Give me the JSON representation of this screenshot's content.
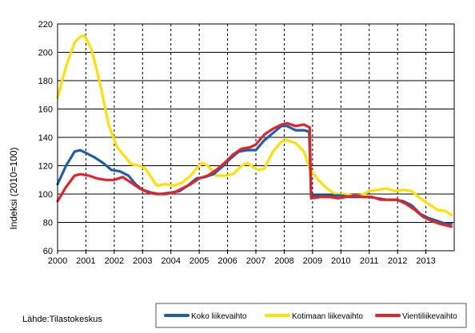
{
  "chart_data": {
    "type": "line",
    "ylabel": "Indeksi (2010=100)",
    "source": "Lähde:Tilastokeskus",
    "ylim": [
      60,
      220
    ],
    "y_ticks": [
      "60",
      "80",
      "100",
      "120",
      "140",
      "160",
      "180",
      "200",
      "220"
    ],
    "x_range": [
      2000,
      2014
    ],
    "x_ticks": [
      "2000",
      "2001",
      "2002",
      "2003",
      "2004",
      "2005",
      "2006",
      "2007",
      "2008",
      "2009",
      "2010",
      "2011",
      "2012",
      "2013"
    ],
    "grid": "vertical dashed at year starts, horizontal solid at y ticks",
    "legend_position": "bottom-right",
    "series": [
      {
        "name": "Koko liikevaihto",
        "color": "#1f5fa8",
        "points": [
          [
            2000.0,
            107
          ],
          [
            2000.3,
            120
          ],
          [
            2000.6,
            130
          ],
          [
            2000.8,
            131
          ],
          [
            2001.0,
            129
          ],
          [
            2001.3,
            126
          ],
          [
            2001.6,
            122
          ],
          [
            2001.9,
            117
          ],
          [
            2002.2,
            116
          ],
          [
            2002.5,
            113
          ],
          [
            2002.75,
            107
          ],
          [
            2003.0,
            103
          ],
          [
            2003.3,
            101
          ],
          [
            2003.6,
            100
          ],
          [
            2004.0,
            101
          ],
          [
            2004.3,
            102
          ],
          [
            2004.6,
            106
          ],
          [
            2004.9,
            111
          ],
          [
            2005.2,
            112
          ],
          [
            2005.5,
            114
          ],
          [
            2005.8,
            119
          ],
          [
            2006.1,
            125
          ],
          [
            2006.4,
            130
          ],
          [
            2006.7,
            131
          ],
          [
            2007.0,
            131
          ],
          [
            2007.3,
            138
          ],
          [
            2007.6,
            143
          ],
          [
            2007.9,
            148
          ],
          [
            2008.1,
            148
          ],
          [
            2008.4,
            145
          ],
          [
            2008.7,
            145
          ],
          [
            2008.88,
            144
          ],
          [
            2008.95,
            99
          ],
          [
            2009.3,
            99
          ],
          [
            2009.6,
            99
          ],
          [
            2010.0,
            99
          ],
          [
            2010.3,
            98
          ],
          [
            2010.6,
            98
          ],
          [
            2011.0,
            98
          ],
          [
            2011.3,
            97
          ],
          [
            2011.6,
            96
          ],
          [
            2011.9,
            96
          ],
          [
            2012.2,
            95
          ],
          [
            2012.5,
            92
          ],
          [
            2012.8,
            86
          ],
          [
            2013.1,
            83
          ],
          [
            2013.4,
            81
          ],
          [
            2013.7,
            79
          ],
          [
            2013.9,
            79
          ]
        ]
      },
      {
        "name": "Kotimaan liikevaihto",
        "color": "#ffe000",
        "points": [
          [
            2000.0,
            168
          ],
          [
            2000.3,
            190
          ],
          [
            2000.6,
            207
          ],
          [
            2000.8,
            211
          ],
          [
            2000.95,
            212
          ],
          [
            2001.2,
            202
          ],
          [
            2001.5,
            178
          ],
          [
            2001.8,
            149
          ],
          [
            2002.1,
            133
          ],
          [
            2002.4,
            126
          ],
          [
            2002.6,
            121
          ],
          [
            2002.9,
            120
          ],
          [
            2003.1,
            118
          ],
          [
            2003.3,
            112
          ],
          [
            2003.5,
            106
          ],
          [
            2003.8,
            107
          ],
          [
            2004.1,
            106
          ],
          [
            2004.4,
            108
          ],
          [
            2004.7,
            113
          ],
          [
            2004.9,
            118
          ],
          [
            2005.1,
            122
          ],
          [
            2005.3,
            120
          ],
          [
            2005.6,
            113
          ],
          [
            2005.9,
            113
          ],
          [
            2006.2,
            114
          ],
          [
            2006.5,
            120
          ],
          [
            2006.7,
            122
          ],
          [
            2006.9,
            119
          ],
          [
            2007.1,
            117
          ],
          [
            2007.3,
            118
          ],
          [
            2007.6,
            130
          ],
          [
            2007.9,
            137
          ],
          [
            2008.1,
            138
          ],
          [
            2008.4,
            136
          ],
          [
            2008.7,
            130
          ],
          [
            2008.9,
            118
          ],
          [
            2009.2,
            110
          ],
          [
            2009.5,
            104
          ],
          [
            2009.8,
            100
          ],
          [
            2010.1,
            100
          ],
          [
            2010.4,
            99
          ],
          [
            2010.7,
            99
          ],
          [
            2011.0,
            102
          ],
          [
            2011.3,
            103
          ],
          [
            2011.6,
            104
          ],
          [
            2011.9,
            102
          ],
          [
            2012.2,
            103
          ],
          [
            2012.5,
            102
          ],
          [
            2012.8,
            97
          ],
          [
            2013.1,
            93
          ],
          [
            2013.4,
            89
          ],
          [
            2013.7,
            88
          ],
          [
            2013.9,
            85
          ]
        ]
      },
      {
        "name": "Vientiliikevaihto",
        "color": "#e0252a",
        "points": [
          [
            2000.0,
            95
          ],
          [
            2000.3,
            105
          ],
          [
            2000.6,
            113
          ],
          [
            2000.8,
            114
          ],
          [
            2001.1,
            113
          ],
          [
            2001.4,
            111
          ],
          [
            2001.7,
            110
          ],
          [
            2002.0,
            110
          ],
          [
            2002.3,
            112
          ],
          [
            2002.6,
            108
          ],
          [
            2002.9,
            104
          ],
          [
            2003.2,
            101
          ],
          [
            2003.5,
            100
          ],
          [
            2003.8,
            100
          ],
          [
            2004.1,
            101
          ],
          [
            2004.4,
            104
          ],
          [
            2004.7,
            107
          ],
          [
            2005.0,
            111
          ],
          [
            2005.3,
            113
          ],
          [
            2005.6,
            117
          ],
          [
            2005.9,
            122
          ],
          [
            2006.2,
            128
          ],
          [
            2006.5,
            132
          ],
          [
            2006.8,
            133
          ],
          [
            2007.0,
            135
          ],
          [
            2007.3,
            142
          ],
          [
            2007.6,
            146
          ],
          [
            2007.9,
            149
          ],
          [
            2008.1,
            150
          ],
          [
            2008.4,
            148
          ],
          [
            2008.7,
            149
          ],
          [
            2008.9,
            147
          ],
          [
            2008.95,
            97
          ],
          [
            2009.3,
            98
          ],
          [
            2009.6,
            98
          ],
          [
            2009.9,
            97
          ],
          [
            2010.2,
            98
          ],
          [
            2010.5,
            99
          ],
          [
            2010.8,
            98
          ],
          [
            2011.1,
            98
          ],
          [
            2011.4,
            96
          ],
          [
            2011.7,
            96
          ],
          [
            2012.0,
            96
          ],
          [
            2012.3,
            93
          ],
          [
            2012.6,
            89
          ],
          [
            2012.9,
            84
          ],
          [
            2013.2,
            81
          ],
          [
            2013.5,
            79
          ],
          [
            2013.7,
            78
          ],
          [
            2013.9,
            77
          ]
        ]
      }
    ]
  }
}
